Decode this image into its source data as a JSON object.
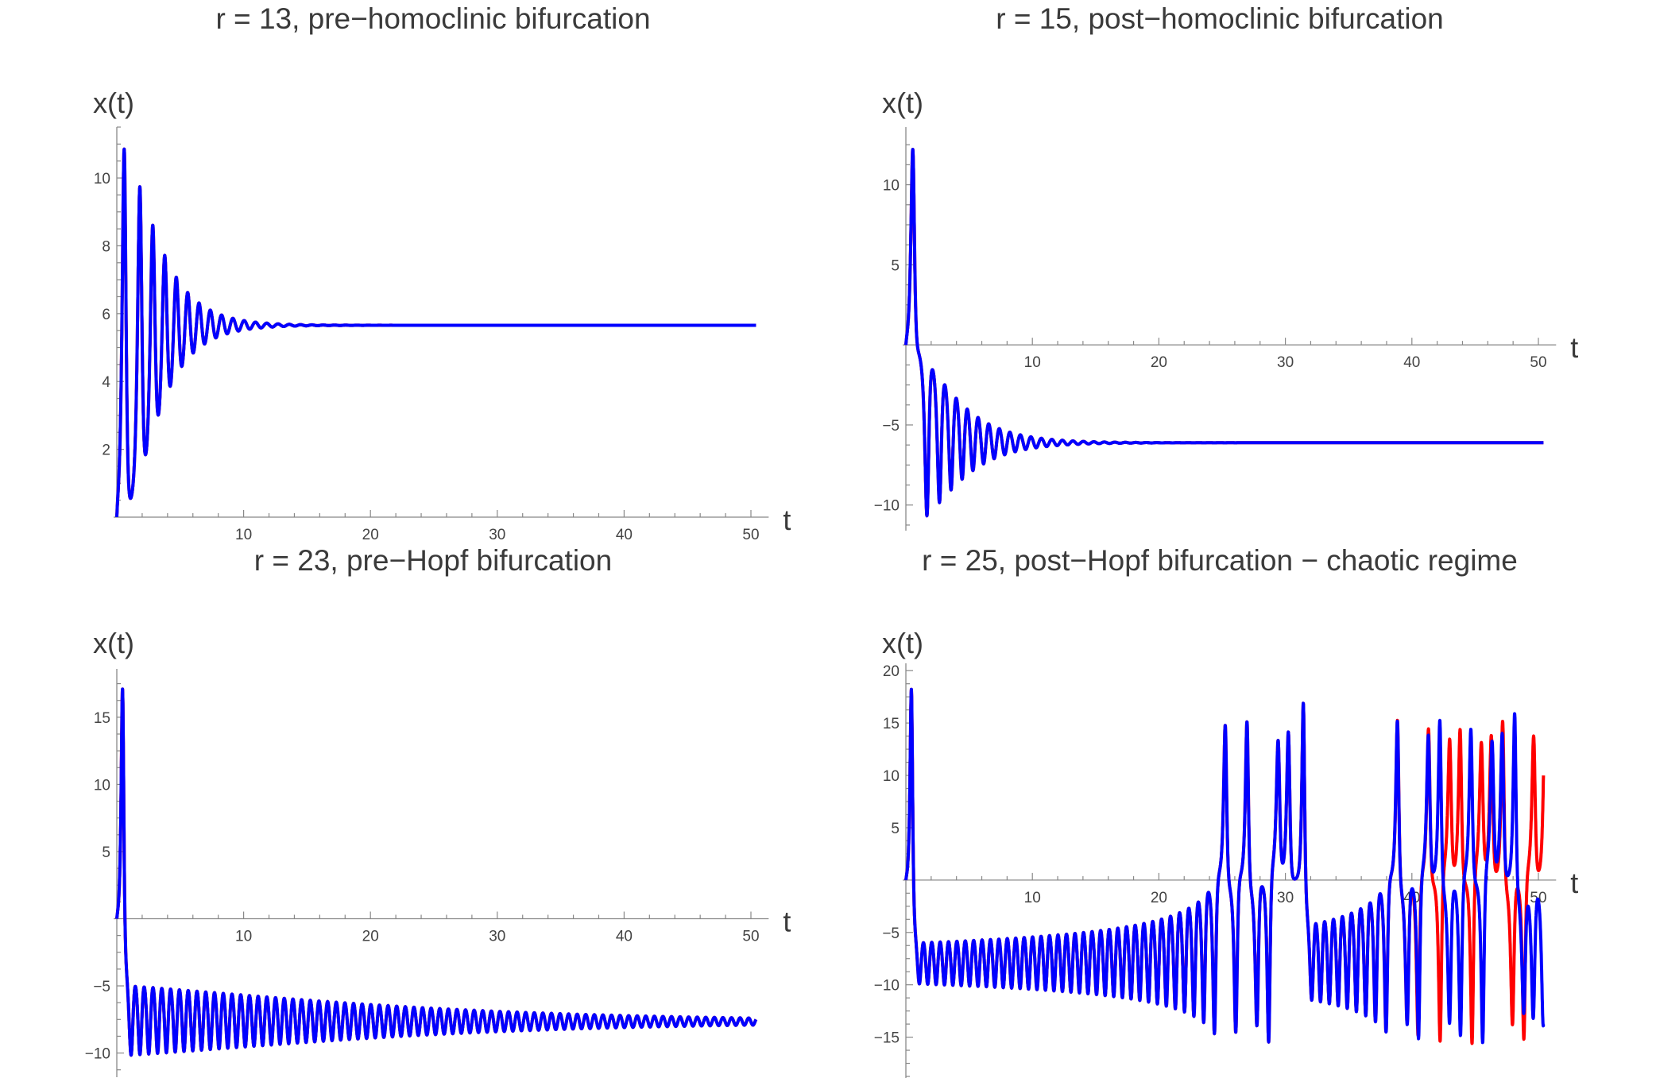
{
  "chart_data": [
    {
      "type": "line",
      "title": "r = 13, pre−homoclinic bifurcation",
      "r": 13,
      "xlabel": "t",
      "ylabel": "x(t)",
      "xlim": [
        0,
        51.4
      ],
      "ylim": [
        0,
        11.5
      ],
      "xticks": [
        10,
        20,
        30,
        40,
        50
      ],
      "yticks": [
        2,
        4,
        6,
        8,
        10
      ],
      "series_colors": [
        "#ff0000",
        "#0000ff"
      ],
      "grid": false
    },
    {
      "type": "line",
      "title": "r = 15, post−homoclinic bifurcation",
      "r": 15,
      "xlabel": "t",
      "ylabel": "x(t)",
      "xlim": [
        0,
        51.4
      ],
      "ylim": [
        -11.6,
        13.6
      ],
      "xticks": [
        10,
        20,
        30,
        40,
        50
      ],
      "yticks": [
        -10,
        -5,
        5,
        10
      ],
      "series_colors": [
        "#ff0000",
        "#0000ff"
      ],
      "grid": false
    },
    {
      "type": "line",
      "title": "r = 23, pre−Hopf bifurcation",
      "r": 23,
      "xlabel": "t",
      "ylabel": "x(t)",
      "xlim": [
        0,
        51.4
      ],
      "ylim": [
        -11.8,
        18.6
      ],
      "xticks": [
        10,
        20,
        30,
        40,
        50
      ],
      "yticks": [
        -10,
        -5,
        5,
        10,
        15
      ],
      "series_colors": [
        "#ff0000",
        "#0000ff"
      ],
      "grid": false
    },
    {
      "type": "line",
      "title": "r = 25, post−Hopf bifurcation − chaotic regime",
      "r": 25,
      "xlabel": "t",
      "ylabel": "x(t)",
      "xlim": [
        0,
        51.4
      ],
      "ylim": [
        -18.9,
        20.7
      ],
      "xticks": [
        10,
        20,
        30,
        40,
        50
      ],
      "yticks": [
        -15,
        -10,
        -5,
        5,
        10,
        15,
        20
      ],
      "series_colors": [
        "#ff0000",
        "#0000ff"
      ],
      "grid": false
    }
  ]
}
